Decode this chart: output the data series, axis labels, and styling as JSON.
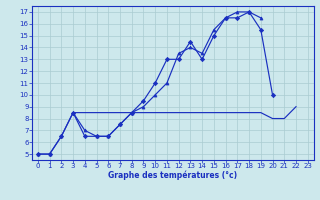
{
  "background_color": "#cde8ec",
  "grid_color": "#aaccd1",
  "line_color": "#1a30c0",
  "xlabel": "Graphe des températures (°c)",
  "xlim": [
    -0.5,
    23.5
  ],
  "ylim": [
    4.5,
    17.5
  ],
  "ytick_vals": [
    5,
    6,
    7,
    8,
    9,
    10,
    11,
    12,
    13,
    14,
    15,
    16,
    17
  ],
  "xtick_vals": [
    0,
    1,
    2,
    3,
    4,
    5,
    6,
    7,
    8,
    9,
    10,
    11,
    12,
    13,
    14,
    15,
    16,
    17,
    18,
    19,
    20,
    21,
    22,
    23
  ],
  "line1_x": [
    0,
    1,
    2,
    3,
    4,
    5,
    6,
    7,
    8,
    9,
    10,
    11,
    12,
    13,
    14,
    15,
    16,
    17,
    18,
    19,
    20
  ],
  "line1_y": [
    5.0,
    5.0,
    6.5,
    8.5,
    6.5,
    6.5,
    6.5,
    7.5,
    8.5,
    9.5,
    11.0,
    13.0,
    13.0,
    14.5,
    13.0,
    15.0,
    16.5,
    16.5,
    17.0,
    15.5,
    10.0
  ],
  "line2_x": [
    0,
    1,
    2,
    3,
    4,
    5,
    6,
    7,
    8,
    9,
    10,
    11,
    12,
    13,
    14,
    15,
    16,
    17,
    18,
    19
  ],
  "line2_y": [
    5.0,
    5.0,
    6.5,
    8.5,
    7.0,
    6.5,
    6.5,
    7.5,
    8.5,
    9.0,
    10.0,
    11.0,
    13.5,
    14.0,
    13.5,
    15.5,
    16.5,
    17.0,
    17.0,
    16.5
  ],
  "line3_x": [
    3,
    8,
    9,
    10,
    11,
    12,
    13,
    14,
    15,
    16,
    17,
    18,
    19,
    20,
    21,
    22
  ],
  "line3_y": [
    8.5,
    8.5,
    8.5,
    8.5,
    8.5,
    8.5,
    8.5,
    8.5,
    8.5,
    8.5,
    8.5,
    8.5,
    8.5,
    8.0,
    8.0,
    9.0
  ],
  "marker1": "D",
  "marker2": "^",
  "markersize": 2.2,
  "linewidth": 0.85,
  "tick_labelsize": 5.0,
  "xlabel_fontsize": 5.5,
  "xlabel_color": "#1a30c0"
}
